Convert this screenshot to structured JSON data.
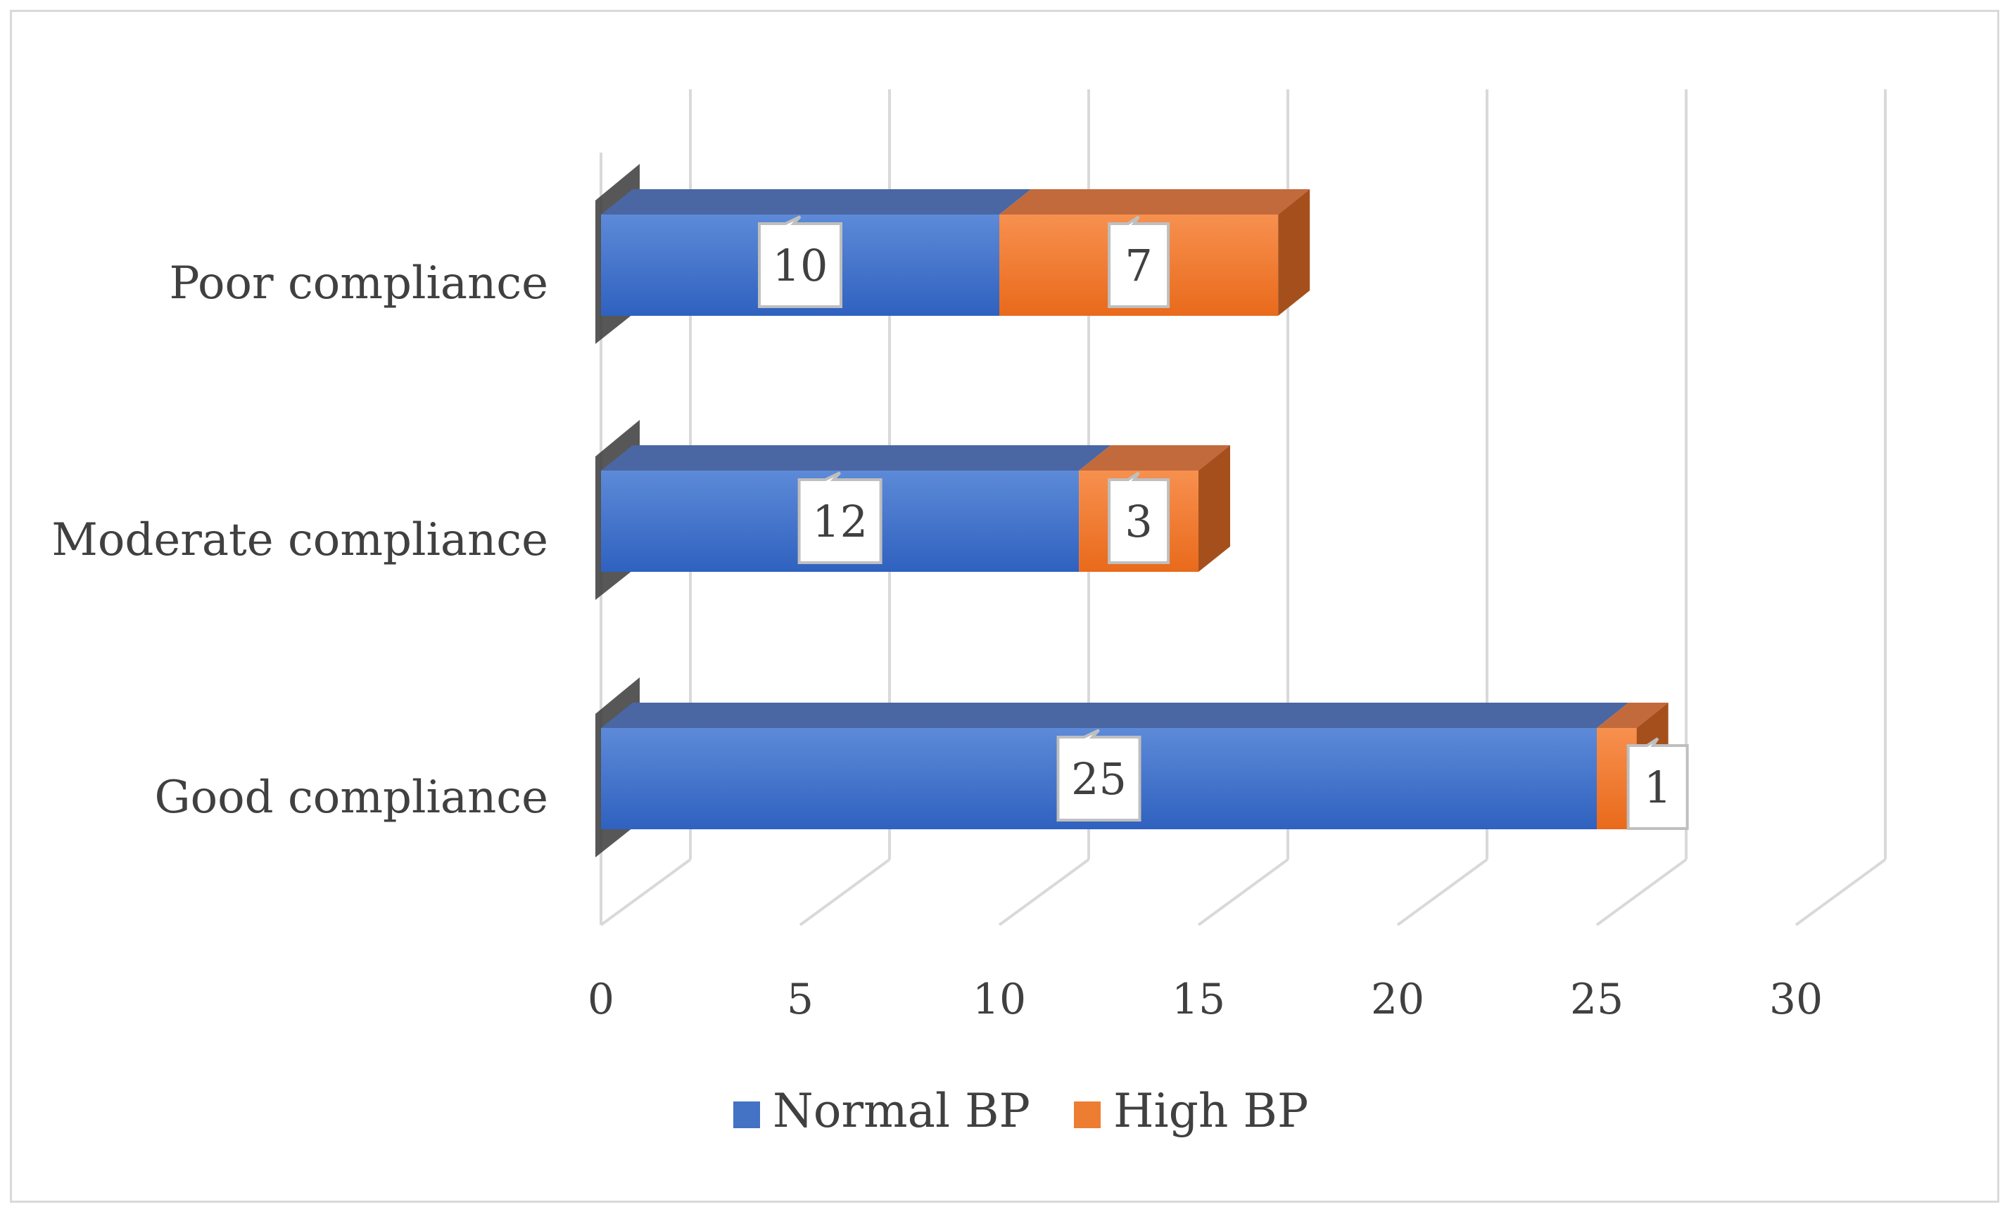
{
  "chart_data": {
    "type": "bar",
    "orientation": "horizontal",
    "stacked": true,
    "style": "3d",
    "categories": [
      "Good compliance",
      "Moderate compliance",
      "Poor compliance"
    ],
    "series": [
      {
        "name": "Normal BP",
        "values": [
          25,
          12,
          10
        ],
        "color": "#4472c4"
      },
      {
        "name": "High BP",
        "values": [
          1,
          3,
          7
        ],
        "color": "#ed7d31"
      }
    ],
    "xlim": [
      0,
      30
    ],
    "xticks": [
      0,
      5,
      10,
      15,
      20,
      25,
      30
    ],
    "xlabel": "",
    "ylabel": "",
    "grid": true,
    "legend": "bottom",
    "data_labels": true
  }
}
